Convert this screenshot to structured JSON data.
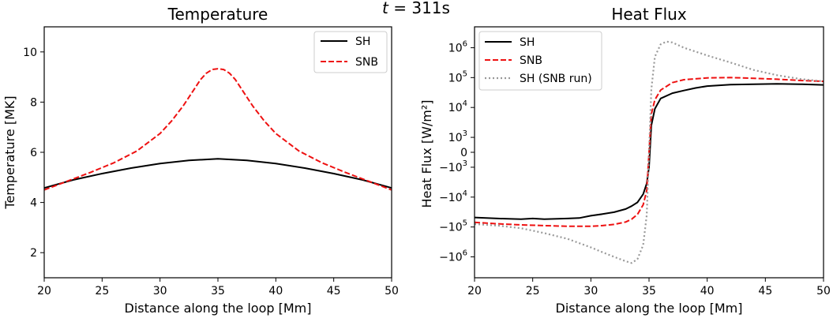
{
  "suptitle": {
    "prefix": "t",
    "rest": " = 311s"
  },
  "chart_data": [
    {
      "type": "line",
      "title": "Temperature",
      "xlabel": "Distance along the loop [Mm]",
      "ylabel": "Temperature [MK]",
      "xlim": [
        20,
        50
      ],
      "ylim": [
        1,
        11
      ],
      "xticks": [
        20,
        25,
        30,
        35,
        40,
        45,
        50
      ],
      "yticks": [
        2,
        4,
        6,
        8,
        10
      ],
      "legend": "top-right",
      "series": [
        {
          "name": "SH",
          "color": "#000000",
          "style": "solid",
          "x": [
            20,
            22.5,
            25,
            27.5,
            30,
            32.5,
            35,
            37.5,
            40,
            42.5,
            45,
            47.5,
            50
          ],
          "y": [
            4.58,
            4.9,
            5.15,
            5.37,
            5.55,
            5.68,
            5.74,
            5.68,
            5.55,
            5.37,
            5.15,
            4.9,
            4.58
          ]
        },
        {
          "name": "SNB",
          "color": "#ee1111",
          "style": "dashed",
          "x": [
            20,
            22,
            24,
            26,
            28,
            30,
            31,
            32,
            33,
            33.5,
            34,
            34.5,
            35,
            35.5,
            36,
            36.5,
            37,
            38,
            39,
            40,
            42,
            44,
            46,
            48,
            50
          ],
          "y": [
            4.5,
            4.85,
            5.2,
            5.58,
            6.05,
            6.75,
            7.25,
            7.85,
            8.55,
            8.9,
            9.15,
            9.3,
            9.33,
            9.3,
            9.15,
            8.9,
            8.55,
            7.85,
            7.25,
            6.75,
            6.05,
            5.58,
            5.2,
            4.85,
            4.5
          ]
        }
      ]
    },
    {
      "type": "line",
      "title": "Heat Flux",
      "xlabel": "Distance along the loop [Mm]",
      "ylabel": "Heat Flux [W/m²]",
      "yscale": "symlog",
      "xlim": [
        20,
        50
      ],
      "ylim": [
        -5000000,
        5000000
      ],
      "xticks": [
        20,
        25,
        30,
        35,
        40,
        45,
        50
      ],
      "yticks": [
        {
          "value": 1000000,
          "base": "10",
          "exp": "6"
        },
        {
          "value": 100000,
          "base": "10",
          "exp": "5"
        },
        {
          "value": 10000,
          "base": "10",
          "exp": "4"
        },
        {
          "value": 1000,
          "base": "10",
          "exp": "3"
        },
        {
          "value": 0,
          "base": "0",
          "exp": ""
        },
        {
          "value": -1000,
          "base": "−10",
          "exp": "3"
        },
        {
          "value": -10000,
          "base": "−10",
          "exp": "4"
        },
        {
          "value": -100000,
          "base": "−10",
          "exp": "5"
        },
        {
          "value": -1000000,
          "base": "−10",
          "exp": "6"
        }
      ],
      "legend": "top-left",
      "series": [
        {
          "name": "SH",
          "color": "#000000",
          "style": "solid",
          "x": [
            20,
            22,
            24,
            25,
            26,
            28,
            29,
            30,
            31,
            32,
            33,
            33.5,
            34,
            34.5,
            34.8,
            35,
            35.2,
            35.5,
            36,
            37,
            38,
            39,
            40,
            42,
            44,
            46,
            48,
            50
          ],
          "y": [
            -48000,
            -52000,
            -55000,
            -52000,
            -55000,
            -52000,
            -50000,
            -42000,
            -37000,
            -32000,
            -25000,
            -20000,
            -15000,
            -8000,
            -3500,
            -1000,
            2500,
            9000,
            20000,
            30000,
            37000,
            45000,
            52000,
            58000,
            60000,
            62000,
            60000,
            57000
          ]
        },
        {
          "name": "SNB",
          "color": "#ee1111",
          "style": "dashed",
          "x": [
            20,
            22,
            24,
            26,
            28,
            30,
            31,
            32,
            33,
            33.5,
            34,
            34.5,
            34.8,
            35,
            35.2,
            35.5,
            36,
            37,
            38,
            40,
            42,
            44,
            46,
            48,
            50
          ],
          "y": [
            -70000,
            -78000,
            -85000,
            -90000,
            -95000,
            -95000,
            -90000,
            -82000,
            -68000,
            -55000,
            -38000,
            -18000,
            -6000,
            0,
            6000,
            18000,
            38000,
            68000,
            85000,
            98000,
            100000,
            95000,
            88000,
            80000,
            75000
          ]
        },
        {
          "name": "SH (SNB run)",
          "color": "#999999",
          "style": "dotted",
          "x": [
            20,
            22,
            24,
            26,
            28,
            30,
            31,
            32,
            33,
            33.5,
            34,
            34.5,
            34.8,
            35,
            35.2,
            35.5,
            36,
            36.5,
            37,
            38,
            40,
            42,
            44,
            46,
            48,
            50
          ],
          "y": [
            -80000,
            -90000,
            -110000,
            -160000,
            -250000,
            -480000,
            -700000,
            -1000000,
            -1400000,
            -1600000,
            -1200000,
            -400000,
            -40000,
            0,
            40000,
            500000,
            1300000,
            1600000,
            1500000,
            1000000,
            550000,
            320000,
            180000,
            120000,
            90000,
            75000
          ]
        }
      ]
    }
  ]
}
